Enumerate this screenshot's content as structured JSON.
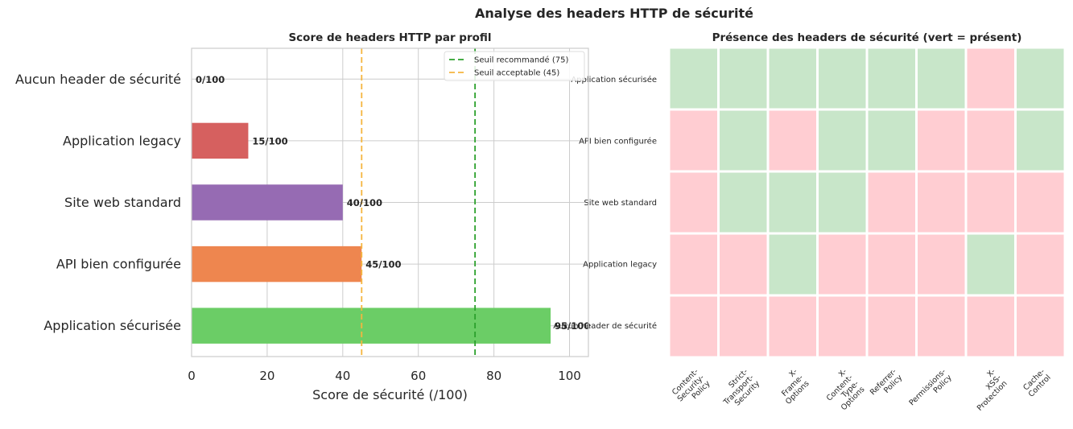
{
  "figure": {
    "suptitle": "Analyse des headers HTTP de sécurité"
  },
  "chart_data": [
    {
      "type": "bar",
      "orientation": "horizontal",
      "title": "Score de headers HTTP par profil",
      "xlabel": "Score de sécurité (/100)",
      "ylabel": "",
      "xlim": [
        0,
        105
      ],
      "xticks": [
        0,
        20,
        40,
        60,
        80,
        100
      ],
      "grid": true,
      "legend_position": "top-right",
      "categories": [
        "Application sécurisée",
        "API bien configurée",
        "Site web standard",
        "Application legacy",
        "Aucun header de sécurité"
      ],
      "values": [
        95,
        45,
        40,
        15,
        0
      ],
      "value_labels": [
        "95/100",
        "45/100",
        "40/100",
        "15/100",
        "0/100"
      ],
      "bar_colors": [
        "#6bcd66",
        "#ee864f",
        "#966bb3",
        "#d6605f",
        "#888888"
      ],
      "reference_lines": [
        {
          "label": "Seuil recommandé (75)",
          "value": 75,
          "color": "#2ca02c"
        },
        {
          "label": "Seuil acceptable (45)",
          "value": 45,
          "color": "#f5b53f"
        }
      ]
    },
    {
      "type": "heatmap",
      "title": "Présence des headers de sécurité (vert = présent)",
      "rows": [
        "Application sécurisée",
        "API bien configurée",
        "Site web standard",
        "Application legacy",
        "Aucun header de sécurité"
      ],
      "columns": [
        "Content-\nSecurity-\nPolicy",
        "Strict-\nTransport-\nSecurity",
        "X-\nFrame-\nOptions",
        "X-\nContent-\nType-\nOptions",
        "Referrer-\nPolicy",
        "Permissions-\nPolicy",
        "X-\nXSS-\nProtection",
        "Cache-\nControl"
      ],
      "values": [
        [
          1,
          1,
          1,
          1,
          1,
          1,
          0,
          1
        ],
        [
          0,
          1,
          0,
          1,
          1,
          0,
          0,
          1
        ],
        [
          0,
          1,
          1,
          1,
          0,
          0,
          0,
          0
        ],
        [
          0,
          0,
          1,
          0,
          0,
          0,
          1,
          0
        ],
        [
          0,
          0,
          0,
          0,
          0,
          0,
          0,
          0
        ]
      ],
      "colors": {
        "present": "#c8e6c9",
        "absent": "#ffcdd2"
      }
    }
  ]
}
